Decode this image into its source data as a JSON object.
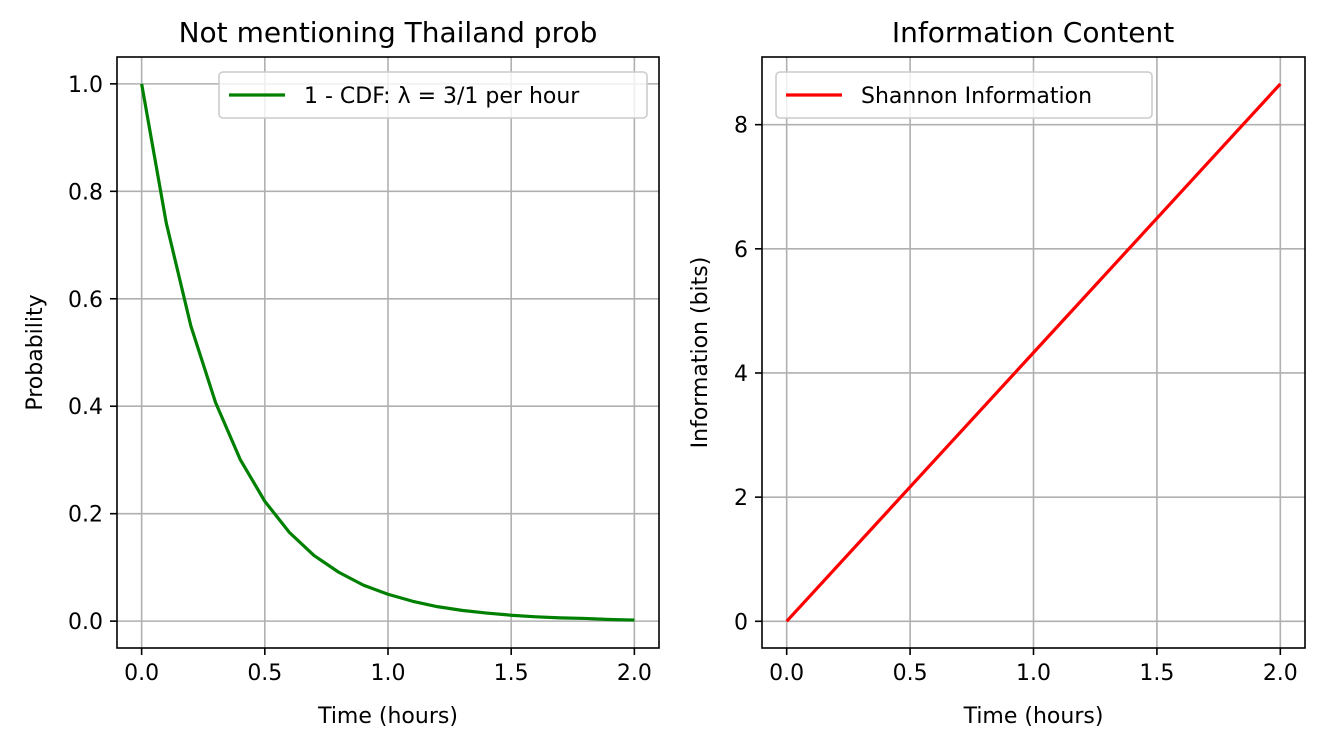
{
  "chart_data": [
    {
      "type": "line",
      "title": "Not mentioning Thailand prob",
      "xlabel": "Time (hours)",
      "ylabel": "Probability",
      "xlim": [
        -0.1,
        2.1
      ],
      "ylim": [
        -0.05,
        1.05
      ],
      "xticks": [
        0.0,
        0.5,
        1.0,
        1.5,
        2.0
      ],
      "xtick_labels": [
        "0.0",
        "0.5",
        "1.0",
        "1.5",
        "2.0"
      ],
      "yticks": [
        0.0,
        0.2,
        0.4,
        0.6,
        0.8,
        1.0
      ],
      "ytick_labels": [
        "0.0",
        "0.2",
        "0.4",
        "0.6",
        "0.8",
        "1.0"
      ],
      "grid": true,
      "legend_position": "upper right",
      "series": [
        {
          "name": "1 - CDF: λ = 3/1 per hour",
          "color": "#008000",
          "x": [
            0.0,
            0.1,
            0.2,
            0.3,
            0.4,
            0.5,
            0.6,
            0.7,
            0.8,
            0.9,
            1.0,
            1.1,
            1.2,
            1.3,
            1.4,
            1.5,
            1.6,
            1.7,
            1.8,
            1.9,
            2.0
          ],
          "y": [
            1.0,
            0.741,
            0.549,
            0.407,
            0.301,
            0.223,
            0.165,
            0.122,
            0.091,
            0.067,
            0.05,
            0.037,
            0.027,
            0.02,
            0.015,
            0.011,
            0.008,
            0.006,
            0.005,
            0.003,
            0.002
          ]
        }
      ]
    },
    {
      "type": "line",
      "title": "Information Content",
      "xlabel": "Time (hours)",
      "ylabel": "Information (bits)",
      "xlim": [
        -0.1,
        2.1
      ],
      "ylim": [
        -0.43,
        9.09
      ],
      "xticks": [
        0.0,
        0.5,
        1.0,
        1.5,
        2.0
      ],
      "xtick_labels": [
        "0.0",
        "0.5",
        "1.0",
        "1.5",
        "2.0"
      ],
      "yticks": [
        0,
        2,
        4,
        6,
        8
      ],
      "ytick_labels": [
        "0",
        "2",
        "4",
        "6",
        "8"
      ],
      "grid": true,
      "legend_position": "upper left",
      "series": [
        {
          "name": "Shannon Information",
          "color": "#ff0000",
          "x": [
            0.0,
            0.5,
            1.0,
            1.5,
            2.0
          ],
          "y": [
            0.0,
            2.164,
            4.328,
            6.492,
            8.656
          ]
        }
      ]
    }
  ]
}
